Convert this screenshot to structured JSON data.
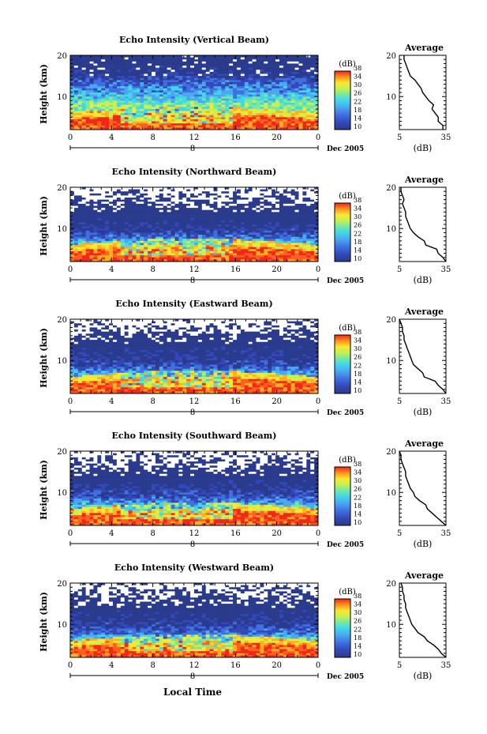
{
  "figure": {
    "xlabel": "Local Time",
    "date_label": "Dec 2005",
    "day_label": "8"
  },
  "chart_data": [
    {
      "type": "heatmap",
      "title": "Echo Intensity (Vertical Beam)",
      "xlabel": "",
      "ylabel": "Height (km)",
      "xlim": [
        0,
        24
      ],
      "ylim": [
        2,
        20
      ],
      "xticks": [
        "0",
        "4",
        "8",
        "12",
        "16",
        "20",
        "0"
      ],
      "yticks": [
        "10",
        "20"
      ],
      "colorbar": {
        "label": "(dB)",
        "ticks": [
          "10",
          "14",
          "18",
          "22",
          "26",
          "30",
          "34",
          "38"
        ],
        "range": [
          10,
          38
        ]
      },
      "profile": {
        "title": "Average",
        "xlabel": "(dB)",
        "xticks": [
          "5",
          "35"
        ],
        "yticks": [
          "10",
          "20"
        ],
        "height_km": [
          2,
          3,
          4,
          5,
          6,
          7,
          8,
          9,
          10,
          11,
          12,
          13,
          14,
          15,
          16,
          17,
          18,
          19,
          20
        ],
        "mean_db": [
          33,
          33,
          30,
          30,
          28,
          26,
          27,
          24,
          22,
          20,
          19,
          17,
          15,
          12,
          11,
          10,
          9,
          8,
          8
        ]
      }
    },
    {
      "type": "heatmap",
      "title": "Echo Intensity (Northward Beam)",
      "xlabel": "",
      "ylabel": "Height (km)",
      "xlim": [
        0,
        24
      ],
      "ylim": [
        2,
        20
      ],
      "xticks": [
        "0",
        "4",
        "8",
        "12",
        "16",
        "20",
        "0"
      ],
      "yticks": [
        "10",
        "20"
      ],
      "colorbar": {
        "label": "(dB)",
        "ticks": [
          "10",
          "14",
          "18",
          "22",
          "26",
          "30",
          "34",
          "38"
        ],
        "range": [
          10,
          38
        ]
      },
      "profile": {
        "title": "Average",
        "xlabel": "(dB)",
        "xticks": [
          "5",
          "35"
        ],
        "yticks": [
          "10",
          "20"
        ],
        "height_km": [
          2,
          3,
          4,
          5,
          6,
          7,
          8,
          9,
          10,
          11,
          12,
          13,
          14,
          15,
          16,
          17,
          18,
          19,
          20
        ],
        "mean_db": [
          35,
          33,
          30,
          29,
          22,
          21,
          17,
          14,
          12,
          11,
          10,
          9,
          9,
          8,
          7,
          8,
          7,
          6,
          6
        ]
      }
    },
    {
      "type": "heatmap",
      "title": "Echo Intensity (Eastward Beam)",
      "xlabel": "",
      "ylabel": "Height (km)",
      "xlim": [
        0,
        24
      ],
      "ylim": [
        2,
        20
      ],
      "xticks": [
        "0",
        "4",
        "8",
        "12",
        "16",
        "20",
        "0"
      ],
      "yticks": [
        "10",
        "20"
      ],
      "colorbar": {
        "label": "(dB)",
        "ticks": [
          "10",
          "14",
          "18",
          "22",
          "26",
          "30",
          "34",
          "38"
        ],
        "range": [
          10,
          38
        ]
      },
      "profile": {
        "title": "Average",
        "xlabel": "(dB)",
        "xticks": [
          "5",
          "35"
        ],
        "yticks": [
          "10",
          "20"
        ],
        "height_km": [
          2,
          3,
          4,
          5,
          6,
          7,
          8,
          9,
          10,
          11,
          12,
          13,
          14,
          15,
          16,
          17,
          18,
          19,
          20
        ],
        "mean_db": [
          35,
          33,
          30,
          28,
          21,
          20,
          17,
          14,
          13,
          12,
          11,
          10,
          9,
          8,
          8,
          7,
          7,
          6,
          5
        ]
      }
    },
    {
      "type": "heatmap",
      "title": "Echo Intensity (Southward Beam)",
      "xlabel": "",
      "ylabel": "Height (km)",
      "xlim": [
        0,
        24
      ],
      "ylim": [
        2,
        20
      ],
      "xticks": [
        "0",
        "4",
        "8",
        "12",
        "16",
        "20",
        "0"
      ],
      "yticks": [
        "10",
        "20"
      ],
      "colorbar": {
        "label": "(dB)",
        "ticks": [
          "10",
          "14",
          "18",
          "22",
          "26",
          "30",
          "34",
          "38"
        ],
        "range": [
          10,
          38
        ]
      },
      "profile": {
        "title": "Average",
        "xlabel": "(dB)",
        "xticks": [
          "5",
          "35"
        ],
        "yticks": [
          "10",
          "20"
        ],
        "height_km": [
          2,
          3,
          4,
          5,
          6,
          7,
          8,
          9,
          10,
          11,
          12,
          13,
          14,
          15,
          16,
          17,
          18,
          19,
          20
        ],
        "mean_db": [
          35,
          32,
          29,
          26,
          23,
          22,
          18,
          15,
          14,
          12,
          11,
          10,
          9,
          9,
          8,
          7,
          6,
          6,
          5
        ]
      }
    },
    {
      "type": "heatmap",
      "title": "Echo Intensity (Westward Beam)",
      "xlabel": "Local Time",
      "ylabel": "Height (km)",
      "xlim": [
        0,
        24
      ],
      "ylim": [
        2,
        20
      ],
      "xticks": [
        "0",
        "4",
        "8",
        "12",
        "16",
        "20",
        "0"
      ],
      "yticks": [
        "10",
        "20"
      ],
      "colorbar": {
        "label": "(dB)",
        "ticks": [
          "10",
          "14",
          "18",
          "22",
          "26",
          "30",
          "34",
          "38"
        ],
        "range": [
          10,
          38
        ]
      },
      "profile": {
        "title": "Average",
        "xlabel": "(dB)",
        "xticks": [
          "5",
          "35"
        ],
        "yticks": [
          "10",
          "20"
        ],
        "height_km": [
          2,
          3,
          4,
          5,
          6,
          7,
          8,
          9,
          10,
          11,
          12,
          13,
          14,
          15,
          16,
          17,
          18,
          19,
          20
        ],
        "mean_db": [
          35,
          32,
          30,
          27,
          23,
          21,
          17,
          15,
          13,
          12,
          11,
          10,
          9,
          9,
          8,
          8,
          7,
          7,
          6
        ]
      }
    }
  ],
  "colors": {
    "scale": [
      "#2a3a8c",
      "#3348b8",
      "#3f6fe0",
      "#4aa8f0",
      "#40d8e8",
      "#78e8a0",
      "#c8f050",
      "#f8e830",
      "#ffb020",
      "#ff6020",
      "#f02818"
    ],
    "axis": "#000000",
    "missing": "#ffffff"
  }
}
